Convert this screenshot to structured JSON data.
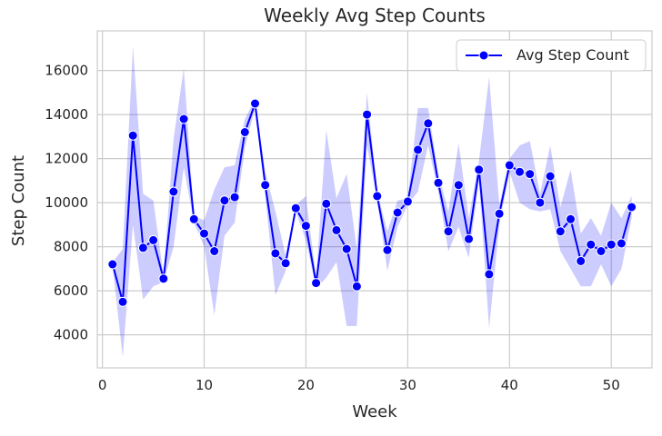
{
  "chart_data": {
    "type": "line",
    "title": "Weekly Avg Step Counts",
    "xlabel": "Week",
    "ylabel": "Step Count",
    "xlim": [
      -0.5,
      54
    ],
    "ylim": [
      2500,
      17800
    ],
    "xticks": [
      0,
      10,
      20,
      30,
      40,
      50
    ],
    "yticks": [
      4000,
      6000,
      8000,
      10000,
      12000,
      14000,
      16000
    ],
    "grid": true,
    "legend_position": "top-right",
    "colors": {
      "line": "#0000ff",
      "band": "#0000ff",
      "grid": "#cccccc",
      "axes": "#cccccc",
      "background": "#ffffff"
    },
    "series": [
      {
        "name": "Avg Step Count",
        "x": [
          1,
          2,
          3,
          4,
          5,
          6,
          7,
          8,
          9,
          10,
          11,
          12,
          13,
          14,
          15,
          16,
          17,
          18,
          19,
          20,
          21,
          22,
          23,
          24,
          25,
          26,
          27,
          28,
          29,
          30,
          31,
          32,
          33,
          34,
          35,
          36,
          37,
          38,
          39,
          40,
          41,
          42,
          43,
          44,
          45,
          46,
          47,
          48,
          49,
          50,
          51,
          52
        ],
        "y": [
          7200,
          5500,
          13050,
          7950,
          8300,
          6550,
          10500,
          13800,
          9250,
          8600,
          7800,
          10100,
          10250,
          13200,
          14500,
          10800,
          7700,
          7250,
          9750,
          8950,
          6350,
          9950,
          8750,
          7900,
          6200,
          14000,
          10300,
          7850,
          9550,
          10050,
          12400,
          13600,
          10900,
          8700,
          10800,
          8350,
          11500,
          6750,
          9500,
          11700,
          11400,
          11300,
          10000,
          11200,
          8700,
          9250,
          7350,
          8100,
          7800,
          8100,
          8150,
          9800
        ],
        "ci_lower": [
          7100,
          3000,
          9000,
          5600,
          6200,
          6400,
          8000,
          11600,
          9100,
          8000,
          4900,
          8500,
          9100,
          12500,
          14300,
          10300,
          5800,
          6900,
          9600,
          8300,
          6100,
          6600,
          7300,
          4400,
          4400,
          12600,
          10100,
          6900,
          8900,
          9900,
          10500,
          12600,
          10500,
          7800,
          8900,
          7500,
          11000,
          4300,
          9000,
          11400,
          10000,
          9700,
          9600,
          9700,
          7800,
          7000,
          6200,
          6200,
          7200,
          6200,
          7000,
          9300
        ],
        "ci_upper": [
          7300,
          7900,
          17100,
          10400,
          10100,
          6700,
          12900,
          16100,
          9400,
          9200,
          10600,
          11600,
          11700,
          13800,
          14700,
          11400,
          9600,
          7600,
          9900,
          10300,
          6600,
          13300,
          10200,
          11300,
          7900,
          15000,
          10500,
          8700,
          10100,
          10200,
          14300,
          14300,
          11300,
          9600,
          12700,
          9300,
          11900,
          15700,
          9900,
          12000,
          12600,
          12800,
          10400,
          12600,
          9800,
          11500,
          8600,
          9300,
          8500,
          10000,
          9300,
          10300
        ]
      }
    ]
  }
}
